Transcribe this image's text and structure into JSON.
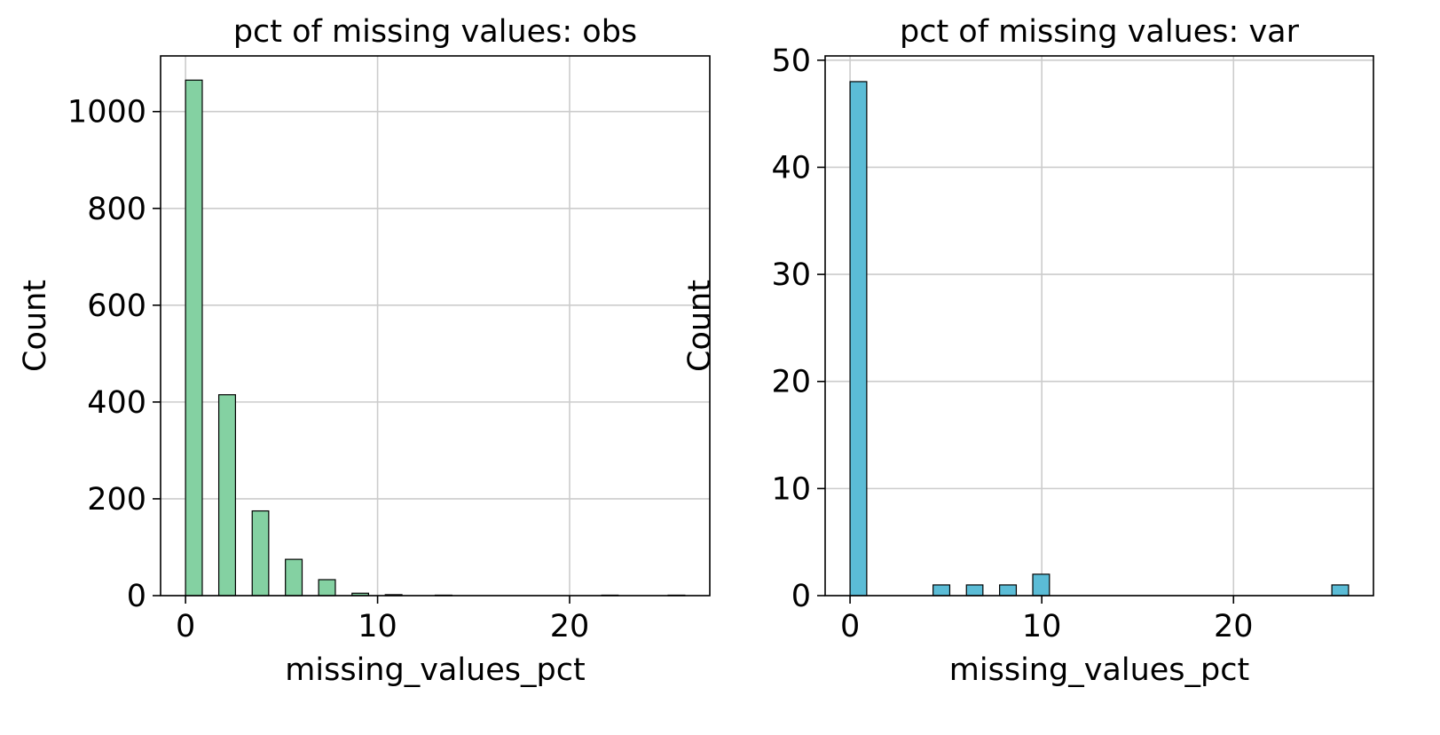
{
  "chart_data": [
    {
      "type": "bar",
      "title": "pct of missing values: obs",
      "xlabel": "missing_values_pct",
      "ylabel": "Count",
      "xlim": [
        -1.3,
        27.3
      ],
      "ylim": [
        0,
        1115
      ],
      "xticks": [
        0,
        10,
        20
      ],
      "yticks": [
        0,
        200,
        400,
        600,
        800,
        1000
      ],
      "grid": true,
      "bar_color": "#84d1a2",
      "edge_color": "#000000",
      "bars": [
        {
          "x0": 0.0,
          "x1": 0.87,
          "count": 1065
        },
        {
          "x0": 1.73,
          "x1": 2.6,
          "count": 415
        },
        {
          "x0": 3.47,
          "x1": 4.33,
          "count": 175
        },
        {
          "x0": 5.2,
          "x1": 6.07,
          "count": 75
        },
        {
          "x0": 6.93,
          "x1": 7.8,
          "count": 33
        },
        {
          "x0": 8.67,
          "x1": 9.53,
          "count": 5
        },
        {
          "x0": 10.4,
          "x1": 11.27,
          "count": 2
        },
        {
          "x0": 13.0,
          "x1": 13.87,
          "count": 1
        },
        {
          "x0": 21.67,
          "x1": 22.53,
          "count": 1
        },
        {
          "x0": 25.13,
          "x1": 26.0,
          "count": 1
        }
      ]
    },
    {
      "type": "bar",
      "title": "pct of missing values: var",
      "xlabel": "missing_values_pct",
      "ylabel": "Count",
      "xlim": [
        -1.3,
        27.3
      ],
      "ylim": [
        0,
        50.4
      ],
      "xticks": [
        0,
        10,
        20
      ],
      "yticks": [
        0,
        10,
        20,
        30,
        40,
        50
      ],
      "grid": true,
      "bar_color": "#5bbcd6",
      "edge_color": "#000000",
      "bars": [
        {
          "x0": 0.0,
          "x1": 0.87,
          "count": 48
        },
        {
          "x0": 4.33,
          "x1": 5.2,
          "count": 1
        },
        {
          "x0": 6.07,
          "x1": 6.93,
          "count": 1
        },
        {
          "x0": 7.8,
          "x1": 8.67,
          "count": 1
        },
        {
          "x0": 9.53,
          "x1": 10.4,
          "count": 2
        },
        {
          "x0": 25.13,
          "x1": 26.0,
          "count": 1
        }
      ]
    }
  ]
}
